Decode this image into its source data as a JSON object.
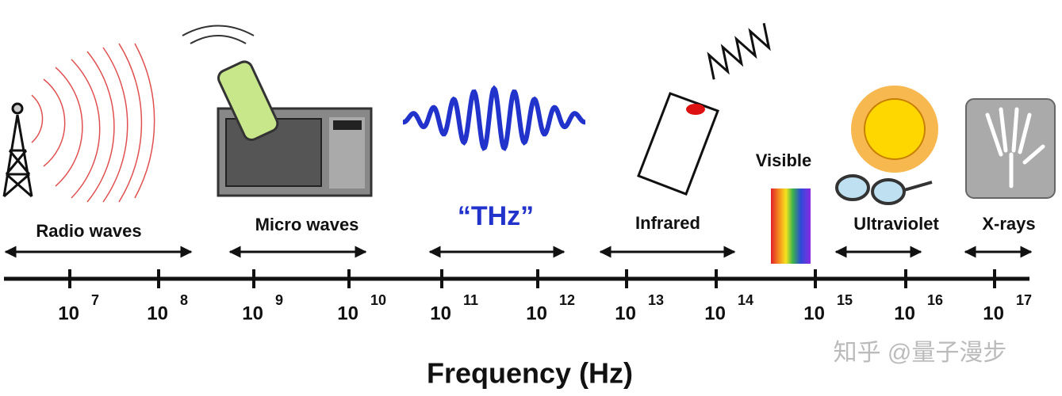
{
  "bands": [
    {
      "label": "Radio waves"
    },
    {
      "label": "Micro waves"
    },
    {
      "label": "“THz”"
    },
    {
      "label": "Infrared"
    },
    {
      "label": "Visible"
    },
    {
      "label": "Ultraviolet"
    },
    {
      "label": "X-rays"
    }
  ],
  "ticks": [
    {
      "base": "10",
      "exponent": "7"
    },
    {
      "base": "10",
      "exponent": "8"
    },
    {
      "base": "10",
      "exponent": "9"
    },
    {
      "base": "10",
      "exponent": "10"
    },
    {
      "base": "10",
      "exponent": "11"
    },
    {
      "base": "10",
      "exponent": "12"
    },
    {
      "base": "10",
      "exponent": "13"
    },
    {
      "base": "10",
      "exponent": "14"
    },
    {
      "base": "10",
      "exponent": "15"
    },
    {
      "base": "10",
      "exponent": "16"
    },
    {
      "base": "10",
      "exponent": "17"
    }
  ],
  "axis_title": "Frequency (Hz)",
  "watermark": "知乎 @量子漫步"
}
